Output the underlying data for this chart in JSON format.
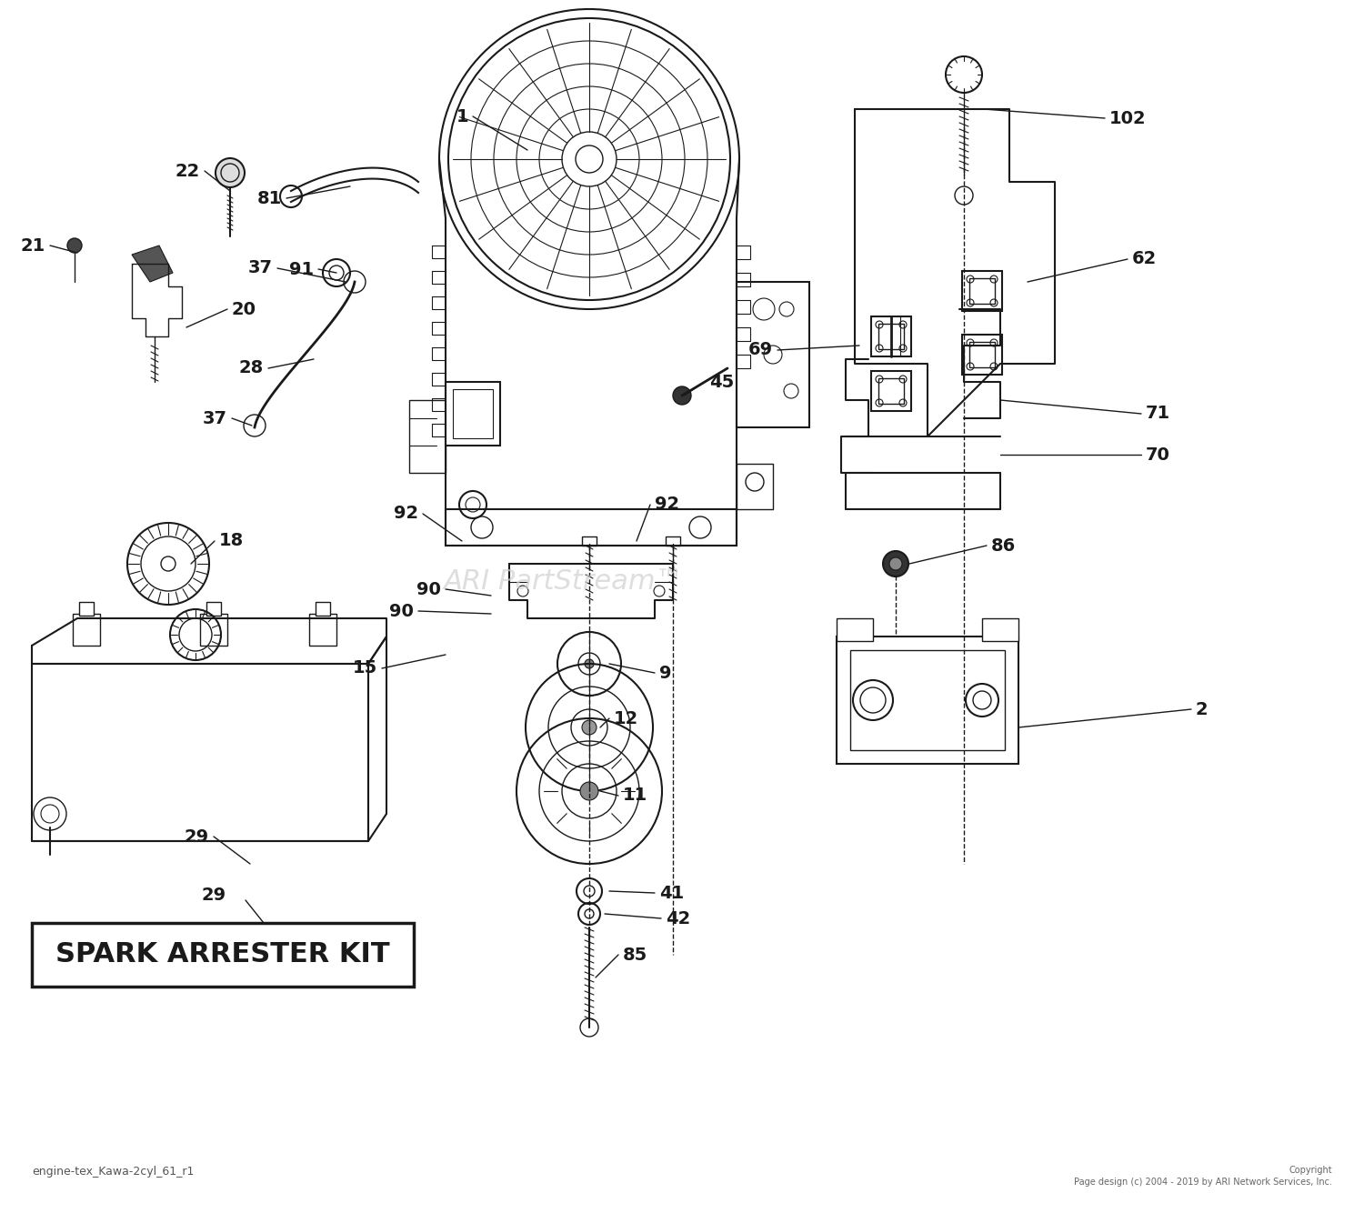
{
  "bg_color": "#ffffff",
  "line_color": "#1a1a1a",
  "label_color": "#1a1a1a",
  "watermark_text": "ARI PartStream™",
  "watermark_color": "#d0d0d0",
  "title_text": "engine-tex_Kawa-2cyl_61_r1",
  "copyright_text": "Copyright\nPage design (c) 2004 - 2019 by ARI Network Services, Inc.",
  "spark_arrester_label": "SPARK ARRESTER KIT",
  "figsize": [
    15.0,
    13.34
  ],
  "dpi": 100
}
